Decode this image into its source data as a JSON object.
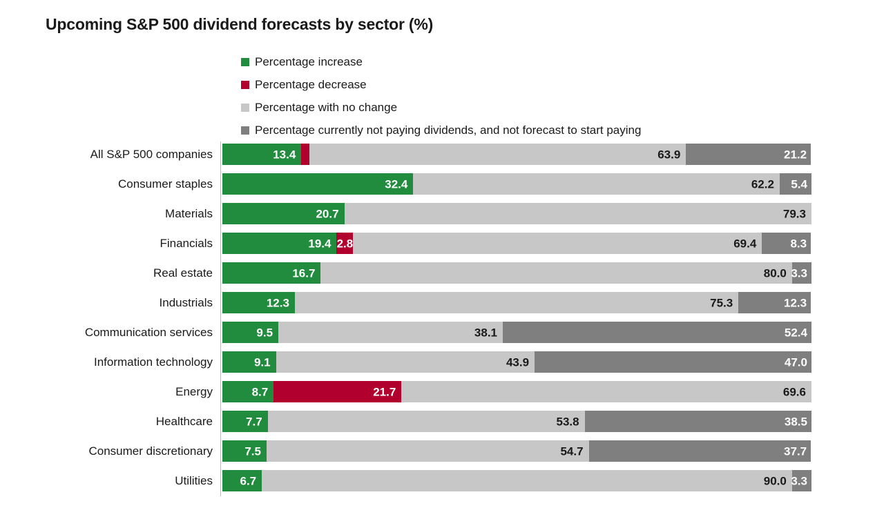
{
  "title": "Upcoming S&P 500 dividend forecasts by sector (%)",
  "colors": {
    "increase": "#218c3d",
    "decrease": "#b2002e",
    "no_change": "#c7c7c7",
    "not_paying": "#7f7f7f",
    "text_dark": "#1a1a1a",
    "text_light": "#ffffff",
    "axis": "#bdbdbd"
  },
  "legend": [
    {
      "key": "increase",
      "label": "Percentage increase"
    },
    {
      "key": "decrease",
      "label": "Percentage decrease"
    },
    {
      "key": "no_change",
      "label": "Percentage with no change"
    },
    {
      "key": "not_paying",
      "label": "Percentage currently not paying dividends, and not forecast to start paying"
    }
  ],
  "chart_data": {
    "type": "bar",
    "orientation": "horizontal",
    "stacked": true,
    "xlim": [
      0,
      100
    ],
    "grid": false,
    "legend_position": "top",
    "title": "Upcoming S&P 500 dividend forecasts by sector (%)",
    "categories": [
      "All S&P 500 companies",
      "Consumer staples",
      "Materials",
      "Financials",
      "Real estate",
      "Industrials",
      "Communication services",
      "Information technology",
      "Energy",
      "Healthcare",
      "Consumer discretionary",
      "Utilities"
    ],
    "series": [
      {
        "key": "increase",
        "name": "Percentage increase",
        "color": "#218c3d",
        "values": [
          13.4,
          32.4,
          20.7,
          19.4,
          16.7,
          12.3,
          9.5,
          9.1,
          8.7,
          7.7,
          7.5,
          6.7
        ]
      },
      {
        "key": "decrease",
        "name": "Percentage decrease",
        "color": "#b2002e",
        "values": [
          1.4,
          0,
          0,
          2.8,
          0,
          0,
          0,
          0,
          21.7,
          0,
          0,
          0
        ]
      },
      {
        "key": "no_change",
        "name": "Percentage with no change",
        "color": "#c7c7c7",
        "values": [
          63.9,
          62.2,
          79.3,
          69.4,
          80.0,
          75.3,
          38.1,
          43.9,
          69.6,
          53.8,
          54.7,
          90.0
        ]
      },
      {
        "key": "not_paying",
        "name": "Percentage currently not paying dividends, and not forecast to start paying",
        "color": "#7f7f7f",
        "values": [
          21.2,
          5.4,
          0,
          8.3,
          3.3,
          12.3,
          52.4,
          47.0,
          0,
          38.5,
          37.7,
          3.3
        ]
      }
    ]
  }
}
